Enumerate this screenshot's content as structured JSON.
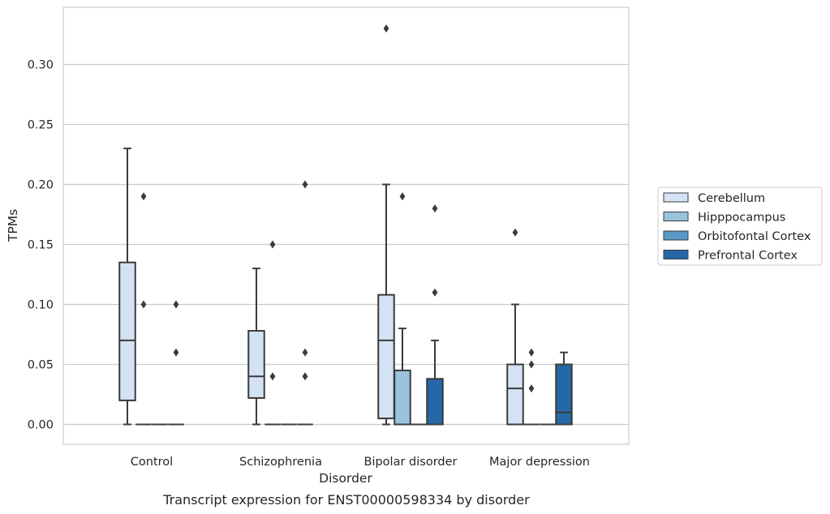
{
  "chart_data": {
    "type": "box",
    "xlabel": "Disorder",
    "ylabel": "TPMs",
    "caption": "Transcript expression for ENST00000598334 by disorder",
    "ylim": [
      -0.017,
      0.347
    ],
    "yticks": [
      0.0,
      0.05,
      0.1,
      0.15,
      0.2,
      0.25,
      0.3
    ],
    "ytick_labels": [
      "0.00",
      "0.05",
      "0.10",
      "0.15",
      "0.20",
      "0.25",
      "0.30"
    ],
    "grid": true,
    "legend_position": "right",
    "categories": [
      "Control",
      "Schizophrenia",
      "Bipolar disorder",
      "Major depression"
    ],
    "series": [
      {
        "name": "Cerebellum",
        "color": "#d4e3f3",
        "boxes": [
          {
            "whislo": 0.0,
            "q1": 0.02,
            "med": 0.07,
            "q3": 0.135,
            "whishi": 0.23,
            "fliers": []
          },
          {
            "whislo": 0.0,
            "q1": 0.022,
            "med": 0.04,
            "q3": 0.078,
            "whishi": 0.13,
            "fliers": []
          },
          {
            "whislo": 0.0,
            "q1": 0.005,
            "med": 0.07,
            "q3": 0.108,
            "whishi": 0.2,
            "fliers": [
              0.33
            ]
          },
          {
            "whislo": 0.0,
            "q1": 0.0,
            "med": 0.03,
            "q3": 0.05,
            "whishi": 0.1,
            "fliers": [
              0.16
            ]
          }
        ]
      },
      {
        "name": "Hipppocampus",
        "color": "#9ac3de",
        "boxes": [
          {
            "whislo": 0.0,
            "q1": 0.0,
            "med": 0.0,
            "q3": 0.0,
            "whishi": 0.0,
            "fliers": [
              0.1,
              0.19
            ]
          },
          {
            "whislo": 0.0,
            "q1": 0.0,
            "med": 0.0,
            "q3": 0.0,
            "whishi": 0.0,
            "fliers": [
              0.04,
              0.15
            ]
          },
          {
            "whislo": 0.0,
            "q1": 0.0,
            "med": 0.0,
            "q3": 0.045,
            "whishi": 0.08,
            "fliers": [
              0.19
            ]
          },
          {
            "whislo": 0.0,
            "q1": 0.0,
            "med": 0.0,
            "q3": 0.0,
            "whishi": 0.0,
            "fliers": [
              0.03,
              0.05,
              0.06
            ]
          }
        ]
      },
      {
        "name": "Orbitofontal Cortex",
        "color": "#5898c6",
        "boxes": [
          {
            "whislo": 0.0,
            "q1": 0.0,
            "med": 0.0,
            "q3": 0.0,
            "whishi": 0.0,
            "fliers": []
          },
          {
            "whislo": 0.0,
            "q1": 0.0,
            "med": 0.0,
            "q3": 0.0,
            "whishi": 0.0,
            "fliers": []
          },
          {
            "whislo": 0.0,
            "q1": 0.0,
            "med": 0.0,
            "q3": 0.0,
            "whishi": 0.0,
            "fliers": []
          },
          {
            "whislo": 0.0,
            "q1": 0.0,
            "med": 0.0,
            "q3": 0.0,
            "whishi": 0.0,
            "fliers": []
          }
        ]
      },
      {
        "name": "Prefrontal Cortex",
        "color": "#2468a8",
        "boxes": [
          {
            "whislo": 0.0,
            "q1": 0.0,
            "med": 0.0,
            "q3": 0.0,
            "whishi": 0.0,
            "fliers": [
              0.06,
              0.1
            ]
          },
          {
            "whislo": 0.0,
            "q1": 0.0,
            "med": 0.0,
            "q3": 0.0,
            "whishi": 0.0,
            "fliers": [
              0.04,
              0.06,
              0.2
            ]
          },
          {
            "whislo": 0.0,
            "q1": 0.0,
            "med": 0.0,
            "q3": 0.038,
            "whishi": 0.07,
            "fliers": [
              0.11,
              0.18
            ]
          },
          {
            "whislo": 0.0,
            "q1": 0.0,
            "med": 0.01,
            "q3": 0.05,
            "whishi": 0.06,
            "fliers": []
          }
        ]
      }
    ]
  }
}
